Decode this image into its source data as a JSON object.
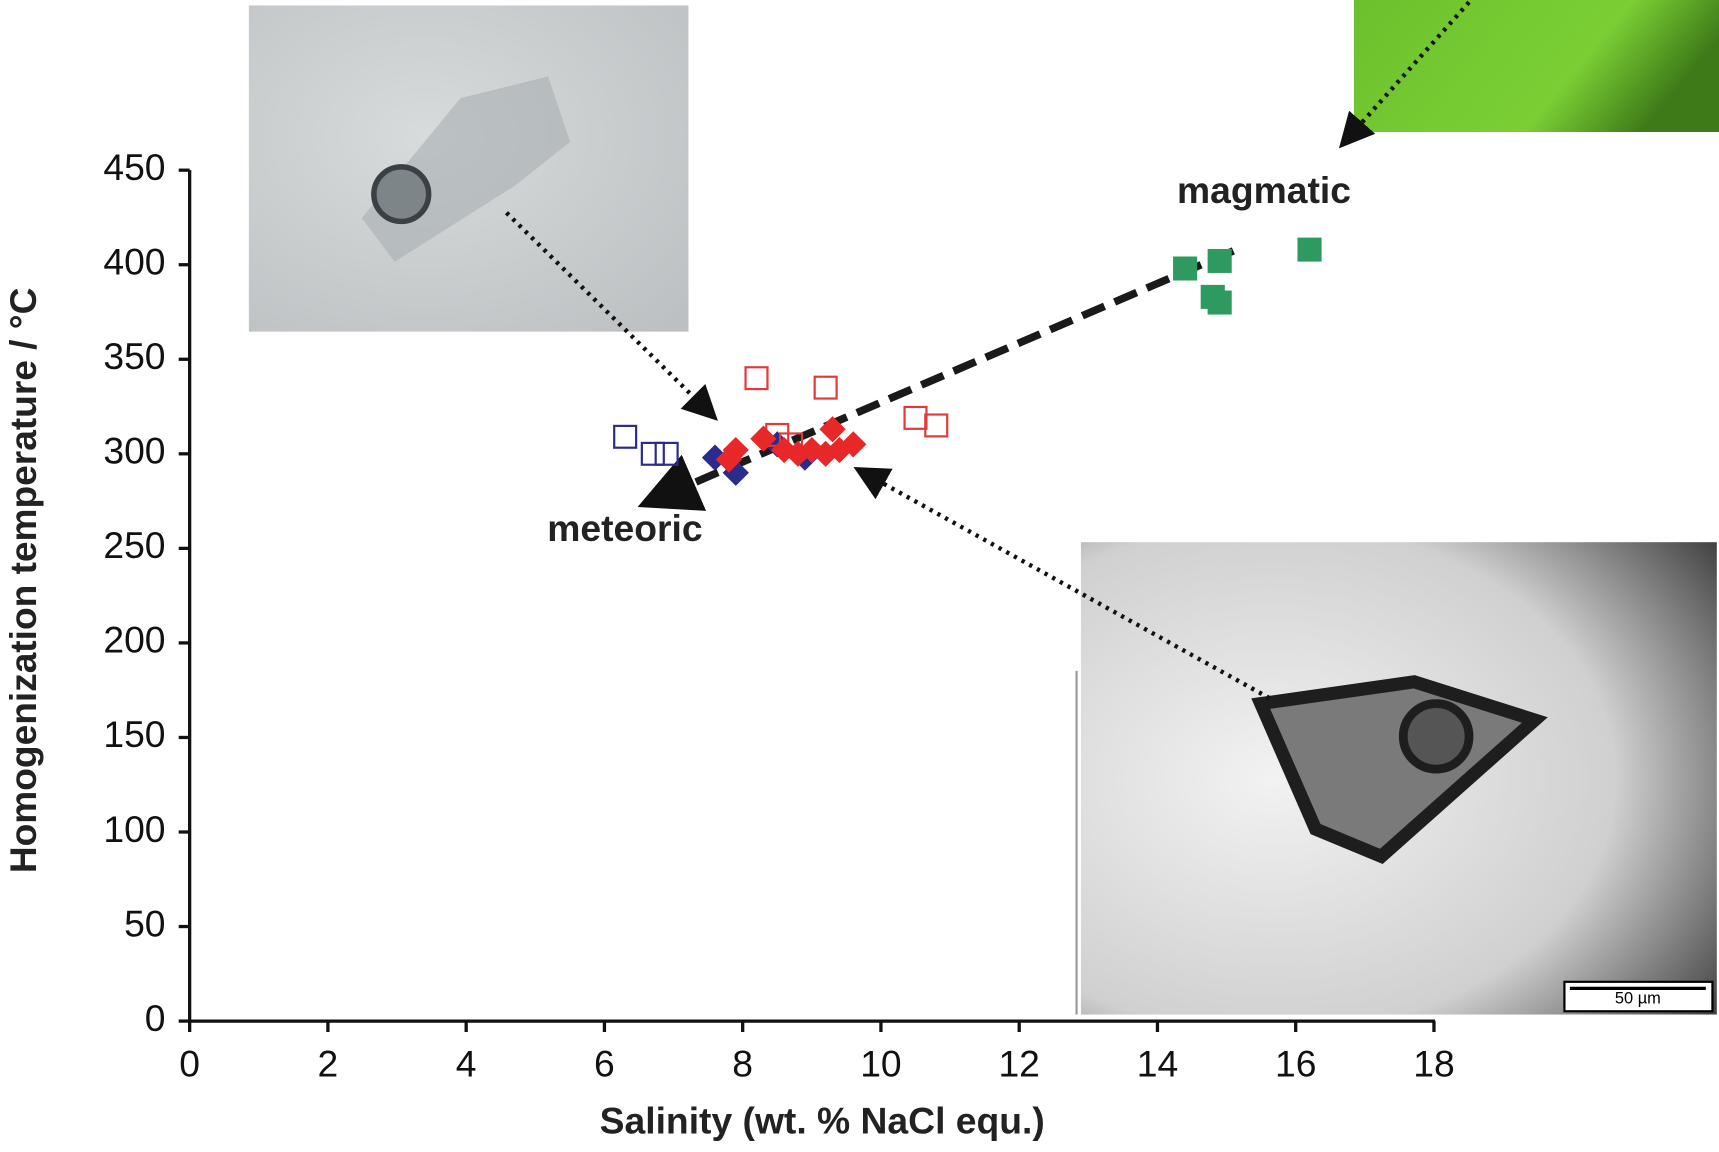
{
  "chart_data": {
    "type": "scatter",
    "x_label": "Salinity (wt. % NaCl equ.)",
    "y_label": "Homogenization temperature / °C",
    "xlim": [
      0,
      18
    ],
    "ylim": [
      0,
      450
    ],
    "xticks": [
      0,
      2,
      4,
      6,
      8,
      10,
      12,
      14,
      16,
      18
    ],
    "yticks": [
      0,
      50,
      100,
      150,
      200,
      250,
      300,
      350,
      400,
      450
    ],
    "grid": false,
    "annotations": [
      "magmatic",
      "meteoric",
      "50 µm"
    ],
    "series": [
      {
        "color": "#2b2b8c",
        "marker": "square-open",
        "x": [
          6.3,
          6.7,
          6.9
        ],
        "values": [
          309,
          300,
          300
        ]
      },
      {
        "color": "#2b2b8c",
        "marker": "diamond",
        "x": [
          7.6,
          7.9,
          8.5,
          8.9
        ],
        "values": [
          298,
          290,
          305,
          298
        ]
      },
      {
        "color": "#e03a3a",
        "marker": "square-open",
        "x": [
          8.2,
          9.2,
          8.5,
          8.7,
          10.5,
          10.8
        ],
        "values": [
          340,
          335,
          310,
          305,
          319,
          315
        ]
      },
      {
        "color": "#e82828",
        "marker": "diamond",
        "x": [
          7.8,
          7.9,
          8.3,
          8.6,
          8.8,
          9.0,
          9.2,
          9.3,
          9.4,
          9.6
        ],
        "values": [
          297,
          302,
          308,
          302,
          300,
          302,
          300,
          313,
          302,
          305
        ]
      },
      {
        "color": "#2e9a60",
        "marker": "square",
        "x": [
          14.4,
          14.9,
          14.8,
          14.9,
          16.2
        ],
        "values": [
          398,
          402,
          383,
          380,
          408
        ]
      }
    ]
  }
}
